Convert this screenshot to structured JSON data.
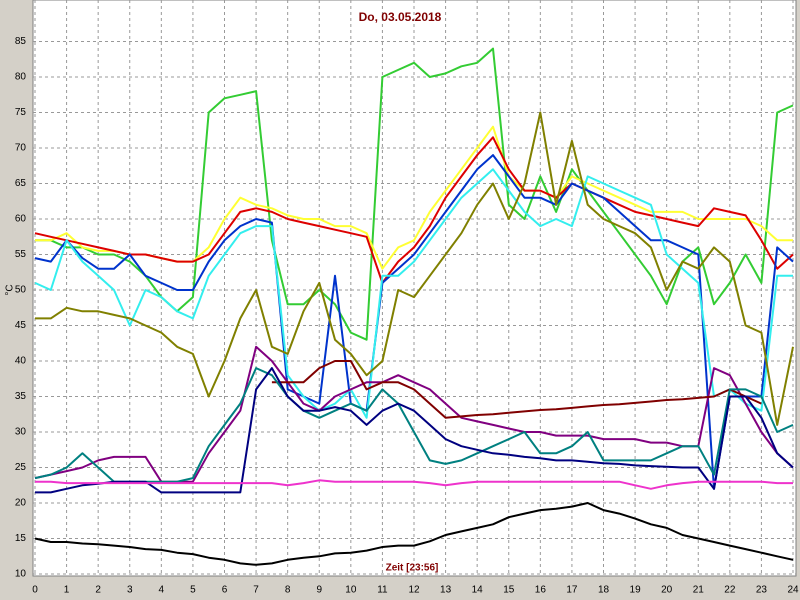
{
  "chart_data": {
    "type": "line",
    "title": "Do, 03.05.2018",
    "xlabel": "Zeit [23:56]",
    "ylabel": "°C",
    "x": [
      0,
      0.5,
      1,
      1.5,
      2,
      2.5,
      3,
      3.5,
      4,
      4.5,
      5,
      5.5,
      6,
      6.5,
      7,
      7.5,
      8,
      8.5,
      9,
      9.5,
      10,
      10.5,
      11,
      11.5,
      12,
      12.5,
      13,
      13.5,
      14,
      14.5,
      15,
      15.5,
      16,
      16.5,
      17,
      17.5,
      18,
      18.5,
      19,
      19.5,
      20,
      20.5,
      21,
      21.5,
      22,
      22.5,
      23,
      23.5,
      24
    ],
    "xlim": [
      0,
      24
    ],
    "xticks": [
      0,
      1,
      2,
      3,
      4,
      5,
      6,
      7,
      8,
      9,
      10,
      11,
      12,
      13,
      14,
      15,
      16,
      17,
      18,
      19,
      20,
      21,
      22,
      23,
      24
    ],
    "ylim": [
      10,
      90
    ],
    "yticks": [
      10,
      15,
      20,
      25,
      30,
      35,
      40,
      45,
      50,
      55,
      60,
      65,
      70,
      75,
      80,
      85
    ],
    "grid": true,
    "series": [
      {
        "color": "#33cc33",
        "values": [
          57,
          57,
          56,
          56,
          55,
          55,
          54,
          52,
          49,
          47,
          49,
          75,
          77,
          77.5,
          78,
          57,
          48,
          48,
          50,
          48,
          44,
          43,
          80,
          81,
          82,
          80,
          80.5,
          81.5,
          82,
          84,
          62,
          60,
          66,
          61,
          67,
          64,
          61,
          58,
          55,
          52,
          48,
          54,
          56,
          48,
          51,
          55,
          51,
          75,
          76
        ]
      },
      {
        "color": "#ffff33",
        "values": [
          57,
          57,
          58,
          56,
          55.5,
          55.5,
          55,
          55,
          54.5,
          54,
          54,
          56,
          60,
          63,
          62,
          61.5,
          60.5,
          60,
          60,
          59,
          59,
          58,
          53,
          56,
          57,
          61,
          64,
          67,
          70,
          73,
          66,
          64,
          64,
          63,
          66,
          65,
          64,
          63,
          62,
          61,
          61,
          61,
          60,
          60,
          60,
          60,
          59,
          57,
          57
        ]
      },
      {
        "color": "#dd0000",
        "values": [
          58,
          57.5,
          57,
          56.5,
          56,
          55.5,
          55,
          55,
          54.5,
          54,
          54,
          55,
          58,
          61,
          61.5,
          61,
          60,
          59.5,
          59,
          58.5,
          58,
          57.5,
          51,
          54,
          56,
          59,
          63,
          66,
          69,
          71.5,
          67,
          64,
          64,
          63,
          65,
          64,
          63,
          62,
          61,
          60.5,
          60,
          59.5,
          59,
          61.5,
          61,
          60.5,
          57,
          53,
          55
        ]
      },
      {
        "color": "#0033cc",
        "values": [
          54.5,
          54,
          57,
          54.5,
          53,
          53,
          55,
          52,
          51,
          50,
          50,
          54,
          57,
          59,
          60,
          59.5,
          36,
          35,
          34,
          52,
          34,
          33,
          51,
          53,
          55,
          58,
          61,
          64,
          67,
          69,
          66,
          63,
          63,
          62,
          65,
          64,
          63,
          61,
          59,
          57,
          57,
          56,
          55,
          22,
          35,
          35,
          35,
          56,
          54
        ]
      },
      {
        "color": "#33eeee",
        "values": [
          51,
          50,
          57,
          54,
          52,
          50,
          45,
          50,
          49,
          47,
          46,
          52,
          55,
          58,
          59,
          59,
          38,
          35,
          33,
          34,
          36,
          32,
          52,
          52,
          54,
          57,
          60,
          63,
          65,
          67,
          64,
          61,
          59,
          60,
          59,
          66,
          65,
          64,
          63,
          62,
          55,
          53,
          51,
          35,
          36,
          34,
          33,
          52,
          52
        ]
      },
      {
        "color": "#808000",
        "values": [
          46,
          46,
          47.5,
          47,
          47,
          46.5,
          46,
          45,
          44,
          42,
          41,
          35,
          40,
          46,
          50,
          42,
          41,
          47,
          51,
          43,
          41,
          38,
          40,
          50,
          49,
          52,
          55,
          58,
          62,
          65,
          60,
          65,
          75,
          62,
          71,
          62,
          60,
          59,
          58,
          56,
          50,
          54,
          53,
          56,
          54,
          45,
          44,
          31,
          42
        ]
      },
      {
        "color": "#800080",
        "values": [
          23.5,
          24,
          24.5,
          25,
          26,
          26.5,
          26.5,
          26.5,
          23,
          23,
          23,
          27,
          30,
          33,
          42,
          40,
          37,
          34,
          33,
          35,
          36,
          37,
          37,
          38,
          37,
          36,
          34,
          32,
          31.5,
          31,
          30.5,
          30,
          30,
          29.5,
          29.5,
          29.5,
          29,
          29,
          29,
          28.5,
          28.5,
          28,
          28,
          39,
          38,
          34,
          30,
          27,
          25
        ]
      },
      {
        "color": "#800000",
        "values": [
          null,
          null,
          null,
          null,
          null,
          null,
          null,
          null,
          null,
          null,
          null,
          null,
          null,
          null,
          null,
          37,
          37,
          37,
          39,
          40,
          40,
          36,
          37,
          37,
          36,
          34,
          32,
          32.2,
          32.4,
          32.5,
          32.7,
          32.9,
          33.1,
          33.2,
          33.4,
          33.6,
          33.8,
          33.9,
          34.1,
          34.3,
          34.5,
          34.6,
          34.8,
          35,
          36,
          35,
          34,
          null,
          null
        ]
      },
      {
        "color": "#008080",
        "values": [
          23.5,
          24,
          25,
          27,
          25,
          23,
          23,
          23,
          23,
          23,
          23.5,
          28,
          31,
          34,
          39,
          38,
          35,
          33,
          32,
          33,
          34,
          33,
          36,
          34,
          30,
          26,
          25.5,
          26,
          27,
          28,
          29,
          30,
          27,
          27,
          28,
          30,
          26,
          26,
          26,
          26,
          27,
          28,
          28,
          24,
          36,
          36,
          35,
          30,
          31
        ]
      },
      {
        "color": "#000080",
        "values": [
          21.5,
          21.5,
          22,
          22.5,
          22.7,
          23,
          23,
          23,
          21.5,
          21.5,
          21.5,
          21.5,
          21.5,
          21.5,
          36,
          39,
          35,
          33,
          33,
          33.5,
          33,
          31,
          33,
          34,
          33,
          31,
          29,
          28,
          27.5,
          27,
          26.8,
          26.5,
          26.3,
          26,
          26,
          25.8,
          25.6,
          25.5,
          25.3,
          25.2,
          25.1,
          25,
          25,
          22,
          35,
          35,
          32,
          27,
          25
        ]
      },
      {
        "color": "#ee33cc",
        "values": [
          23,
          23,
          22.8,
          22.8,
          22.8,
          22.8,
          22.8,
          22.8,
          22.8,
          22.8,
          22.8,
          22.8,
          22.8,
          22.8,
          22.8,
          22.8,
          22.5,
          22.8,
          23.2,
          23,
          23,
          23,
          23,
          23,
          23,
          22.8,
          22.5,
          22.8,
          23,
          23,
          23,
          23,
          23,
          23,
          23,
          23,
          23,
          23,
          22.5,
          22,
          22.5,
          22.8,
          23,
          23,
          23,
          23,
          23,
          22.8,
          22.8
        ]
      },
      {
        "color": "#000000",
        "values": [
          15,
          14.5,
          14.5,
          14.3,
          14.2,
          14,
          13.8,
          13.5,
          13.4,
          13,
          12.8,
          12.3,
          12,
          11.5,
          11.3,
          11.5,
          12,
          12.3,
          12.5,
          12.9,
          13,
          13.3,
          13.8,
          14,
          14,
          14.6,
          15.5,
          16,
          16.5,
          17,
          18,
          18.5,
          19,
          19.2,
          19.5,
          20,
          19,
          18.5,
          17.8,
          17,
          16.5,
          15.5,
          15,
          14.5,
          14,
          13.5,
          13,
          12.5,
          12
        ]
      }
    ]
  }
}
